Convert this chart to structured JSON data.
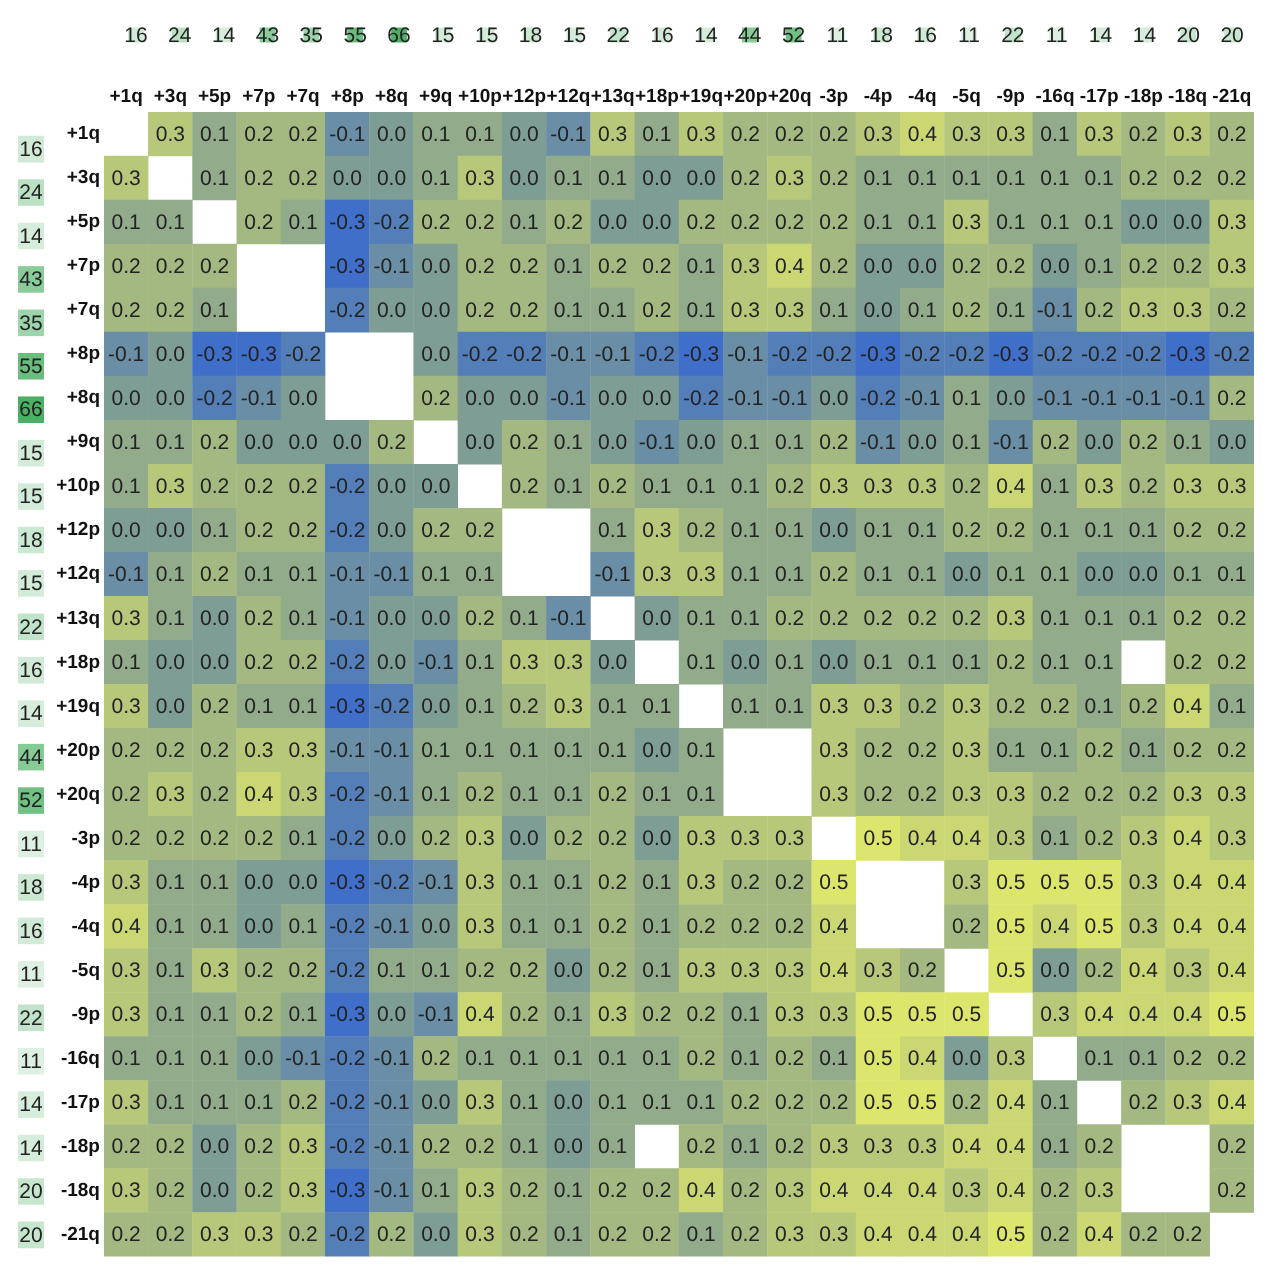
{
  "chart_data": [
    {
      "type": "heatmap",
      "categories": [
        null,
        null,
        null,
        null,
        null,
        null,
        null,
        null,
        null,
        null,
        null,
        null,
        null,
        null,
        null,
        null,
        null,
        null,
        null,
        null,
        null,
        null,
        null,
        null,
        null,
        null
      ],
      "y_categories": [
        null
      ],
      "data_labels": true,
      "cells": [
        [
          16,
          24,
          14,
          43,
          35,
          55,
          66,
          15,
          15,
          18,
          15,
          22,
          16,
          14,
          44,
          52,
          11,
          18,
          16,
          11,
          22,
          11,
          14,
          14,
          20,
          20
        ]
      ]
    },
    {
      "type": "heatmap",
      "categories": [
        null
      ],
      "y_categories": [
        null,
        null,
        null,
        null,
        null,
        null,
        null,
        null,
        null,
        null,
        null,
        null,
        null,
        null,
        null,
        null,
        null,
        null,
        null,
        null,
        null,
        null,
        null,
        null,
        null,
        null
      ],
      "data_labels": true,
      "cells": [
        [
          16
        ],
        [
          24
        ],
        [
          14
        ],
        [
          43
        ],
        [
          35
        ],
        [
          55
        ],
        [
          66
        ],
        [
          15
        ],
        [
          15
        ],
        [
          18
        ],
        [
          15
        ],
        [
          22
        ],
        [
          16
        ],
        [
          14
        ],
        [
          44
        ],
        [
          52
        ],
        [
          11
        ],
        [
          18
        ],
        [
          16
        ],
        [
          11
        ],
        [
          22
        ],
        [
          11
        ],
        [
          14
        ],
        [
          14
        ],
        [
          20
        ],
        [
          20
        ]
      ]
    },
    {
      "type": "heatmap",
      "categories": [
        "+1q",
        "+3q",
        "+5p",
        "+7p",
        "+7q",
        "+8p",
        "+8q",
        "+9q",
        "+10p",
        "+12p",
        "+12q",
        "+13q",
        "+18p",
        "+19q",
        "+20p",
        "+20q",
        "-3p",
        "-4p",
        "-4q",
        "-5q",
        "-9p",
        "-16q",
        "-17p",
        "-18p",
        "-18q",
        "-21q"
      ],
      "y_categories": [
        "+1q",
        "+3q",
        "+5p",
        "+7p",
        "+7q",
        "+8p",
        "+8q",
        "+9q",
        "+10p",
        "+12p",
        "+12q",
        "+13q",
        "+18p",
        "+19q",
        "+20p",
        "+20q",
        "-3p",
        "-4p",
        "-4q",
        "-5q",
        "-9p",
        "-16q",
        "-17p",
        "-18p",
        "-18q",
        "-21q"
      ],
      "data_labels": true,
      "cell_labels": [
        [
          null,
          "0.3",
          "0.1",
          "0.2",
          "0.2",
          "-0.1",
          "0.0",
          "0.1",
          "0.1",
          "0.0",
          "-0.1",
          "0.3",
          "0.1",
          "0.3",
          "0.2",
          "0.2",
          "0.2",
          "0.3",
          "0.4",
          "0.3",
          "0.3",
          "0.1",
          "0.3",
          "0.2",
          "0.3",
          "0.2"
        ],
        [
          "0.3",
          null,
          "0.1",
          "0.2",
          "0.2",
          "0.0",
          "0.0",
          "0.1",
          "0.3",
          "0.0",
          "0.1",
          "0.1",
          "0.0",
          "0.0",
          "0.2",
          "0.3",
          "0.2",
          "0.1",
          "0.1",
          "0.1",
          "0.1",
          "0.1",
          "0.1",
          "0.2",
          "0.2",
          "0.2"
        ],
        [
          "0.1",
          "0.1",
          null,
          "0.2",
          "0.1",
          "-0.3",
          "-0.2",
          "0.2",
          "0.2",
          "0.1",
          "0.2",
          "0.0",
          "0.0",
          "0.2",
          "0.2",
          "0.2",
          "0.2",
          "0.1",
          "0.1",
          "0.3",
          "0.1",
          "0.1",
          "0.1",
          "0.0",
          "0.0",
          "0.3"
        ],
        [
          "0.2",
          "0.2",
          "0.2",
          null,
          null,
          "-0.3",
          "-0.1",
          "0.0",
          "0.2",
          "0.2",
          "0.1",
          "0.2",
          "0.2",
          "0.1",
          "0.3",
          "0.4",
          "0.2",
          "0.0",
          "0.0",
          "0.2",
          "0.2",
          "0.0",
          "0.1",
          "0.2",
          "0.2",
          "0.3"
        ],
        [
          "0.2",
          "0.2",
          "0.1",
          null,
          null,
          "-0.2",
          "0.0",
          "0.0",
          "0.2",
          "0.2",
          "0.1",
          "0.1",
          "0.2",
          "0.1",
          "0.3",
          "0.3",
          "0.1",
          "0.0",
          "0.1",
          "0.2",
          "0.1",
          "-0.1",
          "0.2",
          "0.3",
          "0.3",
          "0.2"
        ],
        [
          "-0.1",
          "0.0",
          "-0.3",
          "-0.3",
          "-0.2",
          null,
          null,
          "0.0",
          "-0.2",
          "-0.2",
          "-0.1",
          "-0.1",
          "-0.2",
          "-0.3",
          "-0.1",
          "-0.2",
          "-0.2",
          "-0.3",
          "-0.2",
          "-0.2",
          "-0.3",
          "-0.2",
          "-0.2",
          "-0.2",
          "-0.3",
          "-0.2"
        ],
        [
          "0.0",
          "0.0",
          "-0.2",
          "-0.1",
          "0.0",
          null,
          null,
          "0.2",
          "0.0",
          "0.0",
          "-0.1",
          "0.0",
          "0.0",
          "-0.2",
          "-0.1",
          "-0.1",
          "0.0",
          "-0.2",
          "-0.1",
          "0.1",
          "0.0",
          "-0.1",
          "-0.1",
          "-0.1",
          "-0.1",
          "0.2"
        ],
        [
          "0.1",
          "0.1",
          "0.2",
          "0.0",
          "0.0",
          "0.0",
          "0.2",
          null,
          "0.0",
          "0.2",
          "0.1",
          "0.0",
          "-0.1",
          "0.0",
          "0.1",
          "0.1",
          "0.2",
          "-0.1",
          "0.0",
          "0.1",
          "-0.1",
          "0.2",
          "0.0",
          "0.2",
          "0.1",
          "0.0"
        ],
        [
          "0.1",
          "0.3",
          "0.2",
          "0.2",
          "0.2",
          "-0.2",
          "0.0",
          "0.0",
          null,
          "0.2",
          "0.1",
          "0.2",
          "0.1",
          "0.1",
          "0.1",
          "0.2",
          "0.3",
          "0.3",
          "0.3",
          "0.2",
          "0.4",
          "0.1",
          "0.3",
          "0.2",
          "0.3",
          "0.3"
        ],
        [
          "0.0",
          "0.0",
          "0.1",
          "0.2",
          "0.2",
          "-0.2",
          "0.0",
          "0.2",
          "0.2",
          null,
          null,
          "0.1",
          "0.3",
          "0.2",
          "0.1",
          "0.1",
          "0.0",
          "0.1",
          "0.1",
          "0.2",
          "0.2",
          "0.1",
          "0.1",
          "0.1",
          "0.2",
          "0.2"
        ],
        [
          "-0.1",
          "0.1",
          "0.2",
          "0.1",
          "0.1",
          "-0.1",
          "-0.1",
          "0.1",
          "0.1",
          null,
          null,
          "-0.1",
          "0.3",
          "0.3",
          "0.1",
          "0.1",
          "0.2",
          "0.1",
          "0.1",
          "0.0",
          "0.1",
          "0.1",
          "0.0",
          "0.0",
          "0.1",
          "0.1"
        ],
        [
          "0.3",
          "0.1",
          "0.0",
          "0.2",
          "0.1",
          "-0.1",
          "0.0",
          "0.0",
          "0.2",
          "0.1",
          "-0.1",
          null,
          "0.0",
          "0.1",
          "0.1",
          "0.2",
          "0.2",
          "0.2",
          "0.2",
          "0.2",
          "0.3",
          "0.1",
          "0.1",
          "0.1",
          "0.2",
          "0.2"
        ],
        [
          "0.1",
          "0.0",
          "0.0",
          "0.2",
          "0.2",
          "-0.2",
          "0.0",
          "-0.1",
          "0.1",
          "0.3",
          "0.3",
          "0.0",
          null,
          "0.1",
          "0.0",
          "0.1",
          "0.0",
          "0.1",
          "0.1",
          "0.1",
          "0.2",
          "0.1",
          "0.1",
          null,
          "0.2",
          "0.2"
        ],
        [
          "0.3",
          "0.0",
          "0.2",
          "0.1",
          "0.1",
          "-0.3",
          "-0.2",
          "0.0",
          "0.1",
          "0.2",
          "0.3",
          "0.1",
          "0.1",
          null,
          "0.1",
          "0.1",
          "0.3",
          "0.3",
          "0.2",
          "0.3",
          "0.2",
          "0.2",
          "0.1",
          "0.2",
          "0.4",
          "0.1"
        ],
        [
          "0.2",
          "0.2",
          "0.2",
          "0.3",
          "0.3",
          "-0.1",
          "-0.1",
          "0.1",
          "0.1",
          "0.1",
          "0.1",
          "0.1",
          "0.0",
          "0.1",
          null,
          null,
          "0.3",
          "0.2",
          "0.2",
          "0.3",
          "0.1",
          "0.1",
          "0.2",
          "0.1",
          "0.2",
          "0.2"
        ],
        [
          "0.2",
          "0.3",
          "0.2",
          "0.4",
          "0.3",
          "-0.2",
          "-0.1",
          "0.1",
          "0.2",
          "0.1",
          "0.1",
          "0.2",
          "0.1",
          "0.1",
          null,
          null,
          "0.3",
          "0.2",
          "0.2",
          "0.3",
          "0.3",
          "0.2",
          "0.2",
          "0.2",
          "0.3",
          "0.3"
        ],
        [
          "0.2",
          "0.2",
          "0.2",
          "0.2",
          "0.1",
          "-0.2",
          "0.0",
          "0.2",
          "0.3",
          "0.0",
          "0.2",
          "0.2",
          "0.0",
          "0.3",
          "0.3",
          "0.3",
          null,
          "0.5",
          "0.4",
          "0.4",
          "0.3",
          "0.1",
          "0.2",
          "0.3",
          "0.4",
          "0.3"
        ],
        [
          "0.3",
          "0.1",
          "0.1",
          "0.0",
          "0.0",
          "-0.3",
          "-0.2",
          "-0.1",
          "0.3",
          "0.1",
          "0.1",
          "0.2",
          "0.1",
          "0.3",
          "0.2",
          "0.2",
          "0.5",
          null,
          null,
          "0.3",
          "0.5",
          "0.5",
          "0.5",
          "0.3",
          "0.4",
          "0.4"
        ],
        [
          "0.4",
          "0.1",
          "0.1",
          "0.0",
          "0.1",
          "-0.2",
          "-0.1",
          "0.0",
          "0.3",
          "0.1",
          "0.1",
          "0.2",
          "0.1",
          "0.2",
          "0.2",
          "0.2",
          "0.4",
          null,
          null,
          "0.2",
          "0.5",
          "0.4",
          "0.5",
          "0.3",
          "0.4",
          "0.4"
        ],
        [
          "0.3",
          "0.1",
          "0.3",
          "0.2",
          "0.2",
          "-0.2",
          "0.1",
          "0.1",
          "0.2",
          "0.2",
          "0.0",
          "0.2",
          "0.1",
          "0.3",
          "0.3",
          "0.3",
          "0.4",
          "0.3",
          "0.2",
          null,
          "0.5",
          "0.0",
          "0.2",
          "0.4",
          "0.3",
          "0.4"
        ],
        [
          "0.3",
          "0.1",
          "0.1",
          "0.2",
          "0.1",
          "-0.3",
          "0.0",
          "-0.1",
          "0.4",
          "0.2",
          "0.1",
          "0.3",
          "0.2",
          "0.2",
          "0.1",
          "0.3",
          "0.3",
          "0.5",
          "0.5",
          "0.5",
          null,
          "0.3",
          "0.4",
          "0.4",
          "0.4",
          "0.5"
        ],
        [
          "0.1",
          "0.1",
          "0.1",
          "0.0",
          "-0.1",
          "-0.2",
          "-0.1",
          "0.2",
          "0.1",
          "0.1",
          "0.1",
          "0.1",
          "0.1",
          "0.2",
          "0.1",
          "0.2",
          "0.1",
          "0.5",
          "0.4",
          "0.0",
          "0.3",
          null,
          "0.1",
          "0.1",
          "0.2",
          "0.2"
        ],
        [
          "0.3",
          "0.1",
          "0.1",
          "0.1",
          "0.2",
          "-0.2",
          "-0.1",
          "0.0",
          "0.3",
          "0.1",
          "0.0",
          "0.1",
          "0.1",
          "0.1",
          "0.2",
          "0.2",
          "0.2",
          "0.5",
          "0.5",
          "0.2",
          "0.4",
          "0.1",
          null,
          "0.2",
          "0.3",
          "0.4"
        ],
        [
          "0.2",
          "0.2",
          "0.0",
          "0.2",
          "0.3",
          "-0.2",
          "-0.1",
          "0.2",
          "0.2",
          "0.1",
          "0.0",
          "0.1",
          null,
          "0.2",
          "0.1",
          "0.2",
          "0.3",
          "0.3",
          "0.3",
          "0.4",
          "0.4",
          "0.1",
          "0.2",
          null,
          null,
          "0.2"
        ],
        [
          "0.3",
          "0.2",
          "0.0",
          "0.2",
          "0.3",
          "-0.3",
          "-0.1",
          "0.1",
          "0.3",
          "0.2",
          "0.1",
          "0.2",
          "0.2",
          "0.4",
          "0.2",
          "0.3",
          "0.4",
          "0.4",
          "0.4",
          "0.3",
          "0.4",
          "0.2",
          "0.3",
          null,
          null,
          "0.2"
        ],
        [
          "0.2",
          "0.2",
          "0.3",
          "0.3",
          "0.2",
          "-0.2",
          "0.2",
          "0.0",
          "0.3",
          "0.2",
          "0.1",
          "0.2",
          "0.2",
          "0.1",
          "0.2",
          "0.3",
          "0.3",
          "0.4",
          "0.4",
          "0.4",
          "0.5",
          "0.2",
          "0.4",
          "0.2",
          "0.2",
          null
        ]
      ],
      "cells": [
        [
          null,
          0.3,
          0.1,
          0.2,
          0.2,
          -0.1,
          0.0,
          0.1,
          0.1,
          0.0,
          -0.1,
          0.3,
          0.1,
          0.3,
          0.2,
          0.2,
          0.2,
          0.3,
          0.4,
          0.3,
          0.3,
          0.1,
          0.3,
          0.2,
          0.3,
          0.2
        ],
        [
          0.3,
          null,
          0.1,
          0.2,
          0.2,
          0.0,
          0.0,
          0.1,
          0.3,
          0.0,
          0.1,
          0.1,
          0.0,
          0.0,
          0.2,
          0.3,
          0.2,
          0.1,
          0.1,
          0.1,
          0.1,
          0.1,
          0.1,
          0.2,
          0.2,
          0.2
        ],
        [
          0.1,
          0.1,
          null,
          0.2,
          0.1,
          -0.3,
          -0.2,
          0.2,
          0.2,
          0.1,
          0.2,
          0.0,
          0.0,
          0.2,
          0.2,
          0.2,
          0.2,
          0.1,
          0.1,
          0.3,
          0.1,
          0.1,
          0.1,
          0.0,
          0.0,
          0.3
        ],
        [
          0.2,
          0.2,
          0.2,
          null,
          null,
          -0.3,
          -0.1,
          0.0,
          0.2,
          0.2,
          0.1,
          0.2,
          0.2,
          0.1,
          0.3,
          0.4,
          0.2,
          0.0,
          0.0,
          0.2,
          0.2,
          0.0,
          0.1,
          0.2,
          0.2,
          0.3
        ],
        [
          0.2,
          0.2,
          0.1,
          null,
          null,
          -0.2,
          0.0,
          0.0,
          0.2,
          0.2,
          0.1,
          0.1,
          0.2,
          0.1,
          0.3,
          0.3,
          0.1,
          0.0,
          0.1,
          0.2,
          0.1,
          -0.1,
          0.2,
          0.3,
          0.3,
          0.2
        ],
        [
          -0.1,
          0.0,
          -0.3,
          -0.3,
          -0.2,
          null,
          null,
          0.0,
          -0.2,
          -0.2,
          -0.1,
          -0.1,
          -0.2,
          -0.3,
          -0.1,
          -0.2,
          -0.2,
          -0.3,
          -0.2,
          -0.2,
          -0.3,
          -0.2,
          -0.2,
          -0.2,
          -0.3,
          -0.2
        ],
        [
          0.0,
          0.0,
          -0.2,
          -0.1,
          0.0,
          null,
          null,
          0.2,
          0.0,
          0.0,
          -0.1,
          0.0,
          0.0,
          -0.2,
          -0.1,
          -0.1,
          0.0,
          -0.2,
          -0.1,
          0.1,
          0.0,
          -0.1,
          -0.1,
          -0.1,
          -0.1,
          0.2
        ],
        [
          0.1,
          0.1,
          0.2,
          0.0,
          0.0,
          0.0,
          0.2,
          null,
          0.0,
          0.2,
          0.1,
          0.0,
          -0.1,
          0.0,
          0.1,
          0.1,
          0.2,
          -0.1,
          0.0,
          0.1,
          -0.1,
          0.2,
          0.0,
          0.2,
          0.1,
          0.0
        ],
        [
          0.1,
          0.3,
          0.2,
          0.2,
          0.2,
          -0.2,
          0.0,
          0.0,
          null,
          0.2,
          0.1,
          0.2,
          0.1,
          0.1,
          0.1,
          0.2,
          0.3,
          0.3,
          0.3,
          0.2,
          0.4,
          0.1,
          0.3,
          0.2,
          0.3,
          0.3
        ],
        [
          0.0,
          0.0,
          0.1,
          0.2,
          0.2,
          -0.2,
          0.0,
          0.2,
          0.2,
          null,
          null,
          0.1,
          0.3,
          0.2,
          0.1,
          0.1,
          0.0,
          0.1,
          0.1,
          0.2,
          0.2,
          0.1,
          0.1,
          0.1,
          0.2,
          0.2
        ],
        [
          -0.1,
          0.1,
          0.2,
          0.1,
          0.1,
          -0.1,
          -0.1,
          0.1,
          0.1,
          null,
          null,
          -0.1,
          0.3,
          0.3,
          0.1,
          0.1,
          0.2,
          0.1,
          0.1,
          0.0,
          0.1,
          0.1,
          0.0,
          0.0,
          0.1,
          0.1
        ],
        [
          0.3,
          0.1,
          0.0,
          0.2,
          0.1,
          -0.1,
          0.0,
          0.0,
          0.2,
          0.1,
          -0.1,
          null,
          0.0,
          0.1,
          0.1,
          0.2,
          0.2,
          0.2,
          0.2,
          0.2,
          0.3,
          0.1,
          0.1,
          0.1,
          0.2,
          0.2
        ],
        [
          0.1,
          0.0,
          0.0,
          0.2,
          0.2,
          -0.2,
          0.0,
          -0.1,
          0.1,
          0.3,
          0.3,
          0.0,
          null,
          0.1,
          0.0,
          0.1,
          0.0,
          0.1,
          0.1,
          0.1,
          0.2,
          0.1,
          0.1,
          null,
          0.2,
          0.2
        ],
        [
          0.3,
          0.0,
          0.2,
          0.1,
          0.1,
          -0.3,
          -0.2,
          0.0,
          0.1,
          0.2,
          0.3,
          0.1,
          0.1,
          null,
          0.1,
          0.1,
          0.3,
          0.3,
          0.2,
          0.3,
          0.2,
          0.2,
          0.1,
          0.2,
          0.4,
          0.1
        ],
        [
          0.2,
          0.2,
          0.2,
          0.3,
          0.3,
          -0.1,
          -0.1,
          0.1,
          0.1,
          0.1,
          0.1,
          0.1,
          0.0,
          0.1,
          null,
          null,
          0.3,
          0.2,
          0.2,
          0.3,
          0.1,
          0.1,
          0.2,
          0.1,
          0.2,
          0.2
        ],
        [
          0.2,
          0.3,
          0.2,
          0.4,
          0.3,
          -0.2,
          -0.1,
          0.1,
          0.2,
          0.1,
          0.1,
          0.2,
          0.1,
          0.1,
          null,
          null,
          0.3,
          0.2,
          0.2,
          0.3,
          0.3,
          0.2,
          0.2,
          0.2,
          0.3,
          0.3
        ],
        [
          0.2,
          0.2,
          0.2,
          0.2,
          0.1,
          -0.2,
          0.0,
          0.2,
          0.3,
          0.0,
          0.2,
          0.2,
          0.0,
          0.3,
          0.3,
          0.3,
          null,
          0.5,
          0.4,
          0.4,
          0.3,
          0.1,
          0.2,
          0.3,
          0.4,
          0.3
        ],
        [
          0.3,
          0.1,
          0.1,
          0.0,
          0.0,
          -0.3,
          -0.2,
          -0.1,
          0.3,
          0.1,
          0.1,
          0.2,
          0.1,
          0.3,
          0.2,
          0.2,
          0.5,
          null,
          null,
          0.3,
          0.5,
          0.5,
          0.5,
          0.3,
          0.4,
          0.4
        ],
        [
          0.4,
          0.1,
          0.1,
          0.0,
          0.1,
          -0.2,
          -0.1,
          0.0,
          0.3,
          0.1,
          0.1,
          0.2,
          0.1,
          0.2,
          0.2,
          0.2,
          0.4,
          null,
          null,
          0.2,
          0.5,
          0.4,
          0.5,
          0.3,
          0.4,
          0.4
        ],
        [
          0.3,
          0.1,
          0.3,
          0.2,
          0.2,
          -0.2,
          0.1,
          0.1,
          0.2,
          0.2,
          0.0,
          0.2,
          0.1,
          0.3,
          0.3,
          0.3,
          0.4,
          0.3,
          0.2,
          null,
          0.5,
          0.0,
          0.2,
          0.4,
          0.3,
          0.4
        ],
        [
          0.3,
          0.1,
          0.1,
          0.2,
          0.1,
          -0.3,
          0.0,
          -0.1,
          0.4,
          0.2,
          0.1,
          0.3,
          0.2,
          0.2,
          0.1,
          0.3,
          0.3,
          0.5,
          0.5,
          0.5,
          null,
          0.3,
          0.4,
          0.4,
          0.4,
          0.5
        ],
        [
          0.1,
          0.1,
          0.1,
          0.0,
          -0.1,
          -0.2,
          -0.1,
          0.2,
          0.1,
          0.1,
          0.1,
          0.1,
          0.1,
          0.2,
          0.1,
          0.2,
          0.1,
          0.5,
          0.4,
          0.0,
          0.3,
          null,
          0.1,
          0.1,
          0.2,
          0.2
        ],
        [
          0.3,
          0.1,
          0.1,
          0.1,
          0.2,
          -0.2,
          -0.1,
          0.0,
          0.3,
          0.1,
          0.0,
          0.1,
          0.1,
          0.1,
          0.2,
          0.2,
          0.2,
          0.5,
          0.5,
          0.2,
          0.4,
          0.1,
          null,
          0.2,
          0.3,
          0.4
        ],
        [
          0.2,
          0.2,
          0.0,
          0.2,
          0.3,
          -0.2,
          -0.1,
          0.2,
          0.2,
          0.1,
          0.0,
          0.1,
          null,
          0.2,
          0.1,
          0.2,
          0.3,
          0.3,
          0.3,
          0.4,
          0.4,
          0.1,
          0.2,
          null,
          null,
          0.2
        ],
        [
          0.3,
          0.2,
          0.0,
          0.2,
          0.3,
          -0.3,
          -0.1,
          0.1,
          0.3,
          0.2,
          0.1,
          0.2,
          0.2,
          0.4,
          0.2,
          0.3,
          0.4,
          0.4,
          0.4,
          0.3,
          0.4,
          0.2,
          0.3,
          null,
          null,
          0.2
        ],
        [
          0.2,
          0.2,
          0.3,
          0.3,
          0.2,
          -0.2,
          0.2,
          0.0,
          0.3,
          0.2,
          0.1,
          0.2,
          0.2,
          0.1,
          0.2,
          0.3,
          0.3,
          0.4,
          0.4,
          0.4,
          0.5,
          0.2,
          0.4,
          0.2,
          0.2,
          null
        ]
      ]
    }
  ]
}
